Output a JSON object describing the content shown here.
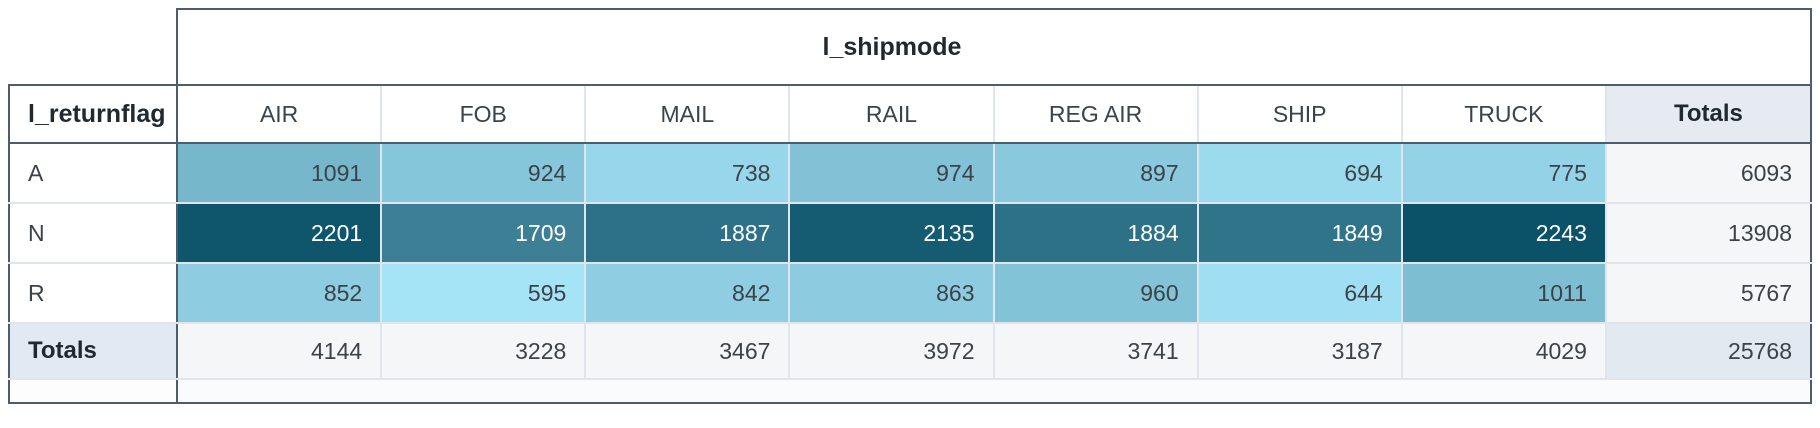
{
  "chart_data": {
    "type": "heatmap",
    "title": "l_shipmode",
    "column_dimension_label": "l_shipmode",
    "row_dimension_label": "l_returnflag",
    "totals_label": "Totals",
    "columns": [
      "AIR",
      "FOB",
      "MAIL",
      "RAIL",
      "REG AIR",
      "SHIP",
      "TRUCK"
    ],
    "series": [
      {
        "name": "A",
        "values": [
          1091,
          924,
          738,
          974,
          897,
          694,
          775
        ],
        "total": 6093
      },
      {
        "name": "N",
        "values": [
          2201,
          1709,
          1887,
          2135,
          1884,
          1849,
          2243
        ],
        "total": 13908
      },
      {
        "name": "R",
        "values": [
          852,
          595,
          842,
          863,
          960,
          644,
          1011
        ],
        "total": 5767
      }
    ],
    "column_totals": [
      4144,
      3228,
      3467,
      3972,
      3741,
      3187,
      4029
    ],
    "grand_total": 25768,
    "color_scale": {
      "min_value": 595,
      "max_value": 2243,
      "min_color": "#A5E3F7",
      "max_color": "#0B5168",
      "text_color_light_cells": "#3B4248",
      "text_color_dark_cells": "#FFFFFF",
      "text_switch_threshold": 0.5
    }
  },
  "colors": {
    "major_border": "#4D5D6C",
    "minor_border": "#DFE5EA",
    "totals_header_bg": "#E5EBF1",
    "totals_row_label_bg": "#E2E9F2",
    "totals_cell_bg": "#F4F6F8",
    "grand_total_bg": "#E2E9F0"
  }
}
